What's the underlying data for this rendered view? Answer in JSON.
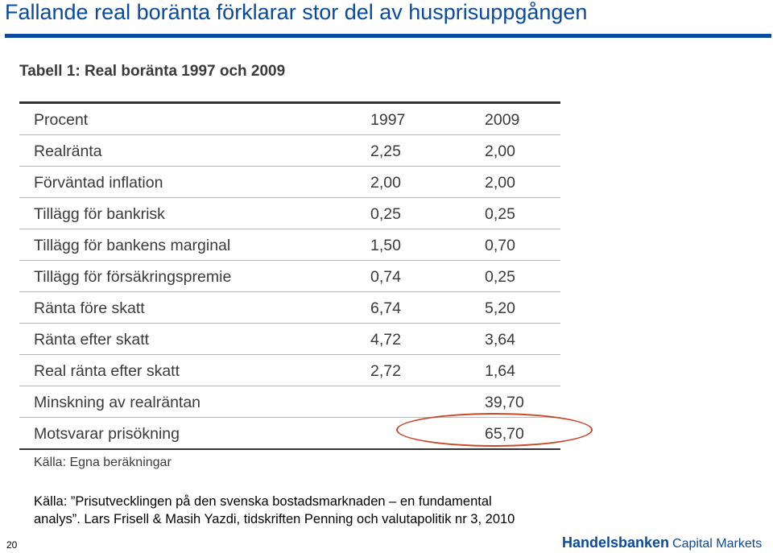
{
  "slide": {
    "title": "Fallande real boränta förklarar stor del av husprisuppgången",
    "page_number": "20",
    "source_line1": "Källa: ”Prisutvecklingen på den svenska bostadsmarknaden – en fundamental",
    "source_line2": "analys”. Lars Frisell & Masih Yazdi, tidskriften Penning och valutapolitik nr 3, 2010",
    "accent_color": "#0a4a9e",
    "highlight_color": "#c9482b"
  },
  "logo": {
    "brand": "Handelsbanken",
    "suffix": "Capital Markets"
  },
  "table": {
    "heading": "Tabell 1: Real boränta 1997 och 2009",
    "columns": [
      "Procent",
      "1997",
      "2009"
    ],
    "rows": [
      [
        "Realränta",
        "2,25",
        "2,00"
      ],
      [
        "Förväntad inflation",
        "2,00",
        "2,00"
      ],
      [
        "Tillägg för bankrisk",
        "0,25",
        "0,25"
      ],
      [
        "Tillägg för bankens marginal",
        "1,50",
        "0,70"
      ],
      [
        "Tillägg för försäkringspremie",
        "0,74",
        "0,25"
      ],
      [
        "Ränta före skatt",
        "6,74",
        "5,20"
      ],
      [
        "Ränta efter skatt",
        "4,72",
        "3,64"
      ],
      [
        "Real ränta efter skatt",
        "2,72",
        "1,64"
      ],
      [
        "Minskning av realräntan",
        "",
        "39,70"
      ],
      [
        "Motsvarar prisökning",
        "",
        "65,70"
      ]
    ],
    "note": "Källa: Egna beräkningar"
  }
}
